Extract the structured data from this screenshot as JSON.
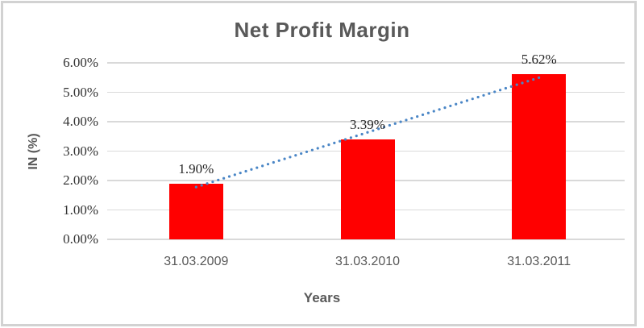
{
  "chart_data": {
    "type": "bar",
    "title": "Net Profit Margin",
    "xlabel": "Years",
    "ylabel": "IN (%)",
    "categories": [
      "31.03.2009",
      "31.03.2010",
      "31.03.2011"
    ],
    "values": [
      1.9,
      3.39,
      5.62
    ],
    "data_labels": [
      "1.90%",
      "3.39%",
      "5.62%"
    ],
    "ytick_labels": [
      "0.00%",
      "1.00%",
      "2.00%",
      "3.00%",
      "4.00%",
      "5.00%",
      "6.00%"
    ],
    "ylim": [
      0,
      6
    ],
    "ytick_step": 1,
    "grid": true,
    "legend": false,
    "bar_color": "#ff0000",
    "gridline_color": "#d9d9d9",
    "title_color": "#595959",
    "trendline": {
      "type": "linear",
      "style": "dotted",
      "color": "#4a86c6"
    }
  }
}
